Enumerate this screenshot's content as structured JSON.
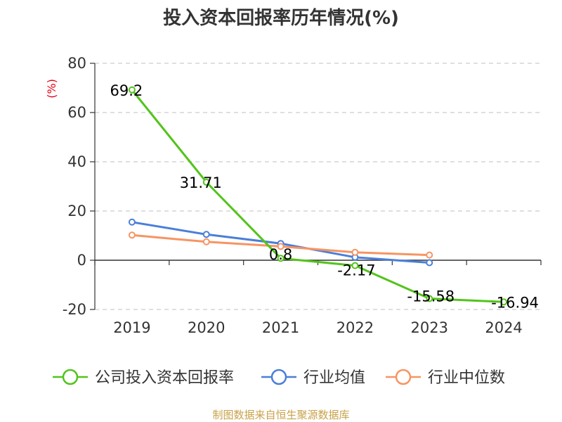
{
  "chart_data": {
    "type": "line",
    "title": "投入资本回报率历年情况(%)",
    "ylabel": "(%)",
    "xlabel": "",
    "categories": [
      "2019",
      "2020",
      "2021",
      "2022",
      "2023",
      "2024"
    ],
    "ylim": [
      -20,
      80
    ],
    "yticks": [
      "80",
      "60",
      "40",
      "20",
      "0",
      "-20"
    ],
    "grid": true,
    "legend_position": "bottom",
    "series": [
      {
        "name": "公司投入资本回报率",
        "color": "#52c41a",
        "values": [
          69.2,
          31.71,
          0.8,
          -2.17,
          -15.58,
          -16.94
        ],
        "labels": [
          "69.2",
          "31.71",
          "0.8",
          "-2.17",
          "-15.58",
          "-16.94"
        ]
      },
      {
        "name": "行业均值",
        "color": "#4a7fd9",
        "values": [
          15.5,
          10.5,
          6.8,
          1.2,
          -1.0,
          null
        ]
      },
      {
        "name": "行业中位数",
        "color": "#f79463",
        "values": [
          10.2,
          7.5,
          5.6,
          3.2,
          2.1,
          null
        ]
      }
    ],
    "source": "制图数据来自恒生聚源数据库"
  }
}
